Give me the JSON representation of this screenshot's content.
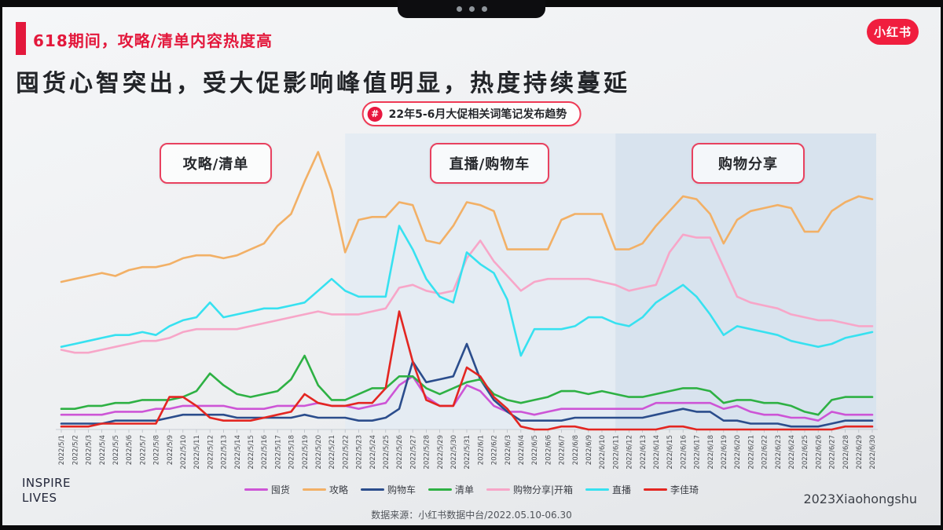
{
  "header": {
    "kicker": "618期间，攻略/清单内容热度高",
    "title": "囤货心智突出，受大促影响峰值明显，热度持续蔓延",
    "logo_label": "小红书"
  },
  "badge": {
    "icon": "#",
    "text": "22年5-6月大促相关词笔记发布趋势"
  },
  "colors": {
    "accent_red": "#e3183c",
    "badge_border": "#ef3a55",
    "region_border": "#e8415f",
    "zone2_fill": "#e5ecf3",
    "zone3_fill": "#d8e3ee",
    "axis_line": "#c9ced4",
    "tick_label": "#4a4d52"
  },
  "chart_data": {
    "type": "line",
    "title": "22年5-6月大促相关词笔记发布趋势",
    "xlabel": "",
    "ylabel": "",
    "y_axis_visible": false,
    "ylim": [
      0,
      100
    ],
    "note": "values are relative note-publishing heat (0-100), estimated from pixels; no numeric y-axis shown in original",
    "legend_position": "bottom",
    "x_tick_rotation": -90,
    "x": [
      "2022/5/1",
      "2022/5/2",
      "2022/5/3",
      "2022/5/4",
      "2022/5/5",
      "2022/5/6",
      "2022/5/7",
      "2022/5/8",
      "2022/5/9",
      "2022/5/10",
      "2022/5/11",
      "2022/5/12",
      "2022/5/13",
      "2022/5/14",
      "2022/5/15",
      "2022/5/16",
      "2022/5/17",
      "2022/5/18",
      "2022/5/19",
      "2022/5/20",
      "2022/5/21",
      "2022/5/22",
      "2022/5/23",
      "2022/5/24",
      "2022/5/25",
      "2022/5/26",
      "2022/5/27",
      "2022/5/28",
      "2022/5/29",
      "2022/5/30",
      "2022/5/31",
      "2022/6/1",
      "2022/6/2",
      "2022/6/3",
      "2022/6/4",
      "2022/6/5",
      "2022/6/6",
      "2022/6/7",
      "2022/6/8",
      "2022/6/9",
      "2022/6/10",
      "2022/6/11",
      "2022/6/12",
      "2022/6/13",
      "2022/6/14",
      "2022/6/15",
      "2022/6/16",
      "2022/6/17",
      "2022/6/18",
      "2022/6/19",
      "2022/6/20",
      "2022/6/21",
      "2022/6/22",
      "2022/6/23",
      "2022/6/24",
      "2022/6/25",
      "2022/6/26",
      "2022/6/27",
      "2022/6/28",
      "2022/6/29",
      "2022/6/30"
    ],
    "regions": [
      {
        "label": "攻略/清单",
        "from": "2022/5/1",
        "to": "2022/5/22",
        "fill": "transparent"
      },
      {
        "label": "直播/购物车",
        "from": "2022/5/22",
        "to": "2022/6/11",
        "fill": "#e5ecf3"
      },
      {
        "label": "购物分享",
        "from": "2022/6/11",
        "to": "2022/6/30",
        "fill": "#d8e3ee"
      }
    ],
    "series": [
      {
        "name": "囤货",
        "color": "#cd55d6",
        "values": [
          5,
          5,
          5,
          5,
          6,
          6,
          6,
          7,
          7,
          8,
          8,
          8,
          8,
          7,
          7,
          7,
          8,
          8,
          8,
          9,
          8,
          8,
          7,
          8,
          9,
          15,
          18,
          11,
          8,
          8,
          15,
          13,
          8,
          6,
          6,
          5,
          6,
          7,
          7,
          7,
          7,
          7,
          7,
          7,
          9,
          9,
          9,
          9,
          9,
          7,
          8,
          6,
          5,
          5,
          4,
          4,
          3,
          6,
          5,
          5,
          5
        ]
      },
      {
        "name": "攻略",
        "color": "#f2b066",
        "values": [
          50,
          51,
          52,
          53,
          52,
          54,
          55,
          55,
          56,
          58,
          59,
          59,
          58,
          59,
          61,
          63,
          69,
          73,
          84,
          94,
          81,
          60,
          71,
          72,
          72,
          77,
          76,
          64,
          63,
          69,
          77,
          76,
          74,
          61,
          61,
          61,
          61,
          71,
          73,
          73,
          73,
          61,
          61,
          63,
          69,
          74,
          79,
          78,
          73,
          63,
          71,
          74,
          75,
          76,
          75,
          67,
          67,
          74,
          77,
          79,
          78
        ]
      },
      {
        "name": "购物车",
        "color": "#2b4d8c",
        "values": [
          2,
          2,
          2,
          2,
          3,
          3,
          3,
          3,
          4,
          5,
          5,
          5,
          5,
          4,
          4,
          4,
          4,
          4,
          5,
          4,
          4,
          4,
          3,
          3,
          4,
          7,
          23,
          16,
          17,
          18,
          29,
          17,
          10,
          6,
          3,
          3,
          3,
          3,
          4,
          4,
          4,
          4,
          4,
          4,
          5,
          6,
          7,
          6,
          6,
          3,
          3,
          2,
          2,
          2,
          1,
          1,
          1,
          2,
          3,
          3,
          3
        ]
      },
      {
        "name": "清单",
        "color": "#2eb144",
        "values": [
          7,
          7,
          8,
          8,
          9,
          9,
          10,
          10,
          10,
          11,
          13,
          19,
          15,
          12,
          11,
          12,
          13,
          17,
          25,
          15,
          10,
          10,
          12,
          14,
          14,
          18,
          18,
          14,
          12,
          14,
          16,
          17,
          12,
          10,
          9,
          10,
          11,
          13,
          13,
          12,
          13,
          12,
          11,
          11,
          12,
          13,
          14,
          14,
          13,
          9,
          10,
          10,
          9,
          9,
          8,
          6,
          5,
          10,
          11,
          11,
          11
        ]
      },
      {
        "name": "购物分享|开箱",
        "color": "#f7a6c8",
        "values": [
          27,
          26,
          26,
          27,
          28,
          29,
          30,
          30,
          31,
          33,
          34,
          34,
          34,
          34,
          35,
          36,
          37,
          38,
          39,
          40,
          39,
          39,
          39,
          40,
          41,
          48,
          49,
          47,
          46,
          47,
          58,
          64,
          57,
          52,
          47,
          50,
          51,
          51,
          51,
          51,
          50,
          49,
          47,
          48,
          49,
          60,
          66,
          65,
          65,
          55,
          45,
          43,
          42,
          41,
          39,
          38,
          37,
          37,
          36,
          35,
          35
        ]
      },
      {
        "name": "直播",
        "color": "#37e1f0",
        "values": [
          28,
          29,
          30,
          31,
          32,
          32,
          33,
          32,
          35,
          37,
          38,
          43,
          38,
          39,
          40,
          41,
          41,
          42,
          43,
          47,
          51,
          47,
          45,
          45,
          45,
          69,
          61,
          51,
          45,
          43,
          60,
          56,
          53,
          44,
          25,
          34,
          34,
          34,
          35,
          38,
          38,
          36,
          35,
          38,
          43,
          46,
          49,
          45,
          39,
          32,
          35,
          34,
          33,
          32,
          30,
          29,
          28,
          29,
          31,
          32,
          33
        ]
      },
      {
        "name": "李佳琦",
        "color": "#e32621",
        "values": [
          1,
          1,
          1,
          2,
          2,
          2,
          2,
          2,
          11,
          11,
          8,
          4,
          3,
          3,
          3,
          4,
          5,
          6,
          12,
          9,
          8,
          8,
          9,
          9,
          14,
          40,
          23,
          10,
          8,
          8,
          21,
          18,
          11,
          7,
          1,
          0,
          0,
          1,
          1,
          0,
          0,
          0,
          0,
          0,
          0,
          1,
          1,
          0,
          0,
          0,
          0,
          0,
          0,
          0,
          0,
          0,
          0,
          0,
          1,
          1,
          1
        ]
      }
    ]
  },
  "footer": {
    "left_line1": "INSPIRE",
    "left_line2": "LIVES",
    "right": "2023Xiaohongshu",
    "source": "数据来源：小红书数据中台/2022.05.10-06.30"
  }
}
